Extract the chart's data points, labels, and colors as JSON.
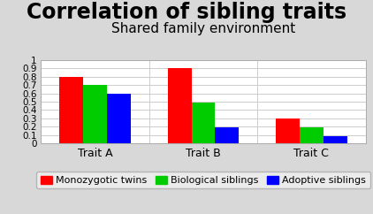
{
  "title": "Correlation of sibling traits",
  "subtitle": "Shared family environment",
  "categories": [
    "Trait A",
    "Trait B",
    "Trait C"
  ],
  "series": [
    {
      "label": "Monozygotic twins",
      "color": "#ff0000",
      "values": [
        0.8,
        0.9,
        0.3
      ]
    },
    {
      "label": "Biological siblings",
      "color": "#00cc00",
      "values": [
        0.7,
        0.49,
        0.19
      ]
    },
    {
      "label": "Adoptive siblings",
      "color": "#0000ff",
      "values": [
        0.6,
        0.19,
        0.09
      ]
    }
  ],
  "ylim": [
    0,
    1.0
  ],
  "yticks": [
    0,
    0.1,
    0.2,
    0.3,
    0.4,
    0.5,
    0.6,
    0.7,
    0.8,
    0.9,
    1
  ],
  "ytick_labels": [
    "0",
    "0.1",
    "0.2",
    "0.3",
    "0.4",
    "0.5",
    "0.6",
    "0.7",
    "0.8",
    "0.9",
    "1"
  ],
  "background_color": "#d8d8d8",
  "plot_bg_color": "#ffffff",
  "title_fontsize": 17,
  "subtitle_fontsize": 11,
  "legend_fontsize": 8,
  "tick_fontsize": 7.5,
  "xtick_fontsize": 9,
  "bar_width": 0.22,
  "grid_color": "#cccccc"
}
